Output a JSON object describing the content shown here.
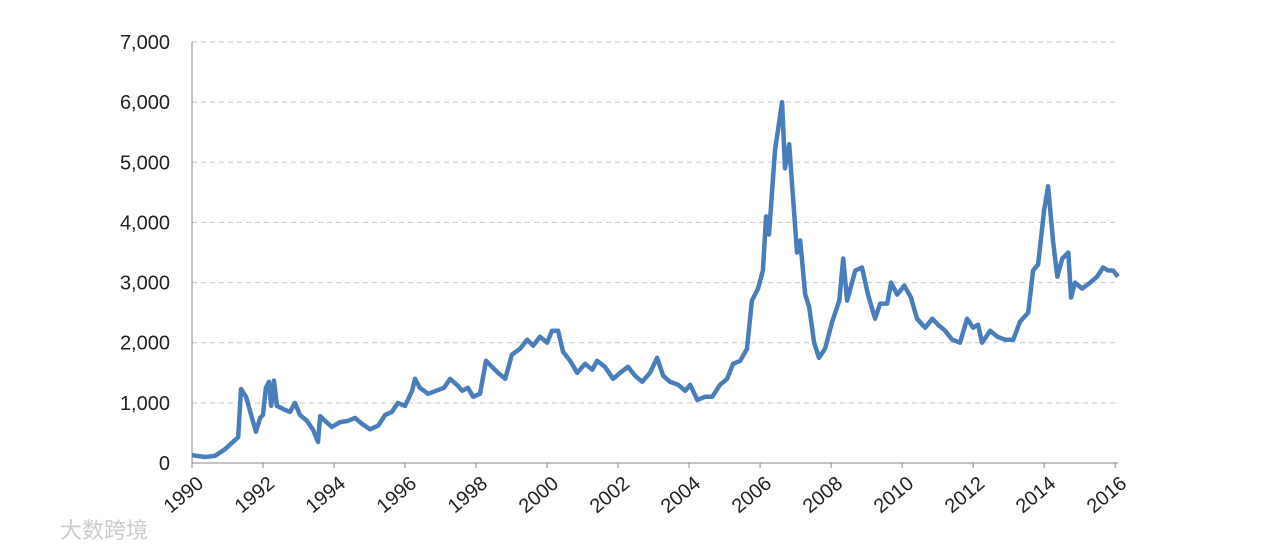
{
  "chart_data": {
    "type": "line",
    "watermark": "大数跨境",
    "x": [
      1990.0,
      1990.37,
      1990.65,
      1990.93,
      1991.21,
      1991.3,
      1991.38,
      1991.52,
      1991.69,
      1991.8,
      1991.92,
      1992.0,
      1992.08,
      1992.17,
      1992.23,
      1992.31,
      1992.39,
      1992.56,
      1992.76,
      1992.9,
      1993.04,
      1993.24,
      1993.41,
      1993.55,
      1993.61,
      1993.75,
      1993.94,
      1994.17,
      1994.39,
      1994.59,
      1994.79,
      1995.01,
      1995.24,
      1995.44,
      1995.63,
      1995.8,
      1996.0,
      1996.2,
      1996.28,
      1996.42,
      1996.65,
      1996.87,
      1997.1,
      1997.27,
      1997.46,
      1997.61,
      1997.77,
      1997.92,
      1998.11,
      1998.28,
      1998.45,
      1998.62,
      1998.82,
      1999.01,
      1999.24,
      1999.44,
      1999.61,
      1999.8,
      2000.0,
      2000.14,
      2000.31,
      2000.45,
      2000.65,
      2000.85,
      2001.07,
      2001.27,
      2001.41,
      2001.63,
      2001.86,
      2002.06,
      2002.28,
      2002.48,
      2002.68,
      2002.9,
      2003.1,
      2003.27,
      2003.46,
      2003.69,
      2003.89,
      2004.03,
      2004.23,
      2004.45,
      2004.65,
      2004.87,
      2005.07,
      2005.24,
      2005.44,
      2005.63,
      2005.77,
      2005.94,
      2006.08,
      2006.17,
      2006.25,
      2006.42,
      2006.62,
      2006.7,
      2006.82,
      2006.93,
      2007.04,
      2007.13,
      2007.27,
      2007.38,
      2007.52,
      2007.66,
      2007.83,
      2008.03,
      2008.23,
      2008.34,
      2008.45,
      2008.68,
      2008.87,
      2009.04,
      2009.24,
      2009.38,
      2009.58,
      2009.69,
      2009.86,
      2010.06,
      2010.25,
      2010.42,
      2010.65,
      2010.85,
      2011.01,
      2011.21,
      2011.41,
      2011.63,
      2011.83,
      2012.0,
      2012.14,
      2012.25,
      2012.48,
      2012.68,
      2012.9,
      2013.13,
      2013.32,
      2013.55,
      2013.69,
      2013.83,
      2014.0,
      2014.11,
      2014.25,
      2014.37,
      2014.51,
      2014.68,
      2014.76,
      2014.87,
      2015.07,
      2015.3,
      2015.49,
      2015.66,
      2015.8,
      2015.94,
      2016.08
    ],
    "series": [
      {
        "color": "#4a7ebb",
        "values": [
          130,
          100,
          120,
          230,
          380,
          430,
          1230,
          1100,
          750,
          520,
          750,
          800,
          1250,
          1350,
          950,
          1370,
          950,
          900,
          850,
          1000,
          800,
          700,
          550,
          350,
          780,
          700,
          600,
          680,
          700,
          750,
          650,
          560,
          620,
          800,
          850,
          1000,
          950,
          1200,
          1400,
          1250,
          1150,
          1200,
          1250,
          1400,
          1300,
          1200,
          1250,
          1100,
          1150,
          1700,
          1600,
          1500,
          1400,
          1800,
          1900,
          2050,
          1950,
          2100,
          2000,
          2200,
          2200,
          1850,
          1700,
          1500,
          1650,
          1550,
          1700,
          1600,
          1400,
          1500,
          1600,
          1450,
          1350,
          1500,
          1750,
          1450,
          1350,
          1300,
          1200,
          1300,
          1050,
          1100,
          1100,
          1300,
          1400,
          1650,
          1700,
          1900,
          2700,
          2900,
          3200,
          4100,
          3800,
          5200,
          6000,
          4900,
          5300,
          4400,
          3500,
          3700,
          2800,
          2600,
          2000,
          1750,
          1900,
          2350,
          2700,
          3400,
          2700,
          3200,
          3250,
          2800,
          2400,
          2650,
          2650,
          3000,
          2800,
          2950,
          2750,
          2400,
          2250,
          2400,
          2300,
          2200,
          2050,
          2000,
          2400,
          2250,
          2300,
          2000,
          2200,
          2100,
          2050,
          2050,
          2350,
          2500,
          3200,
          3300,
          4200,
          4600,
          3700,
          3100,
          3400,
          3500,
          2750,
          3000,
          2900,
          3000,
          3100,
          3250,
          3200,
          3200,
          3100
        ]
      }
    ],
    "xlim": [
      1990,
      2016.08
    ],
    "xticks": [
      1990,
      1992,
      1994,
      1996,
      1998,
      2000,
      2002,
      2004,
      2006,
      2008,
      2010,
      2012,
      2014,
      2016
    ],
    "ylim": [
      0,
      7000
    ],
    "yticks": [
      0,
      {
        "value": 1000,
        "label": "1,000"
      },
      {
        "value": 2000,
        "label": "2,000"
      },
      {
        "value": 3000,
        "label": "3,000"
      },
      {
        "value": 4000,
        "label": "4,000"
      },
      {
        "value": 5000,
        "label": "5,000"
      },
      {
        "value": 6000,
        "label": "6,000"
      },
      {
        "value": 7000,
        "label": "7,000"
      }
    ],
    "grid": true
  }
}
